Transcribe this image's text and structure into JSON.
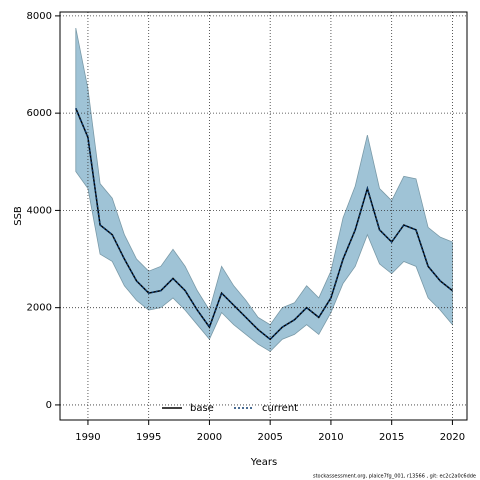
{
  "chart_data": {
    "type": "line",
    "xlabel": "Years",
    "ylabel": "SSB",
    "x": [
      1989,
      1990,
      1991,
      1992,
      1993,
      1994,
      1995,
      1996,
      1997,
      1998,
      1999,
      2000,
      2001,
      2002,
      2003,
      2004,
      2005,
      2006,
      2007,
      2008,
      2009,
      2010,
      2011,
      2012,
      2013,
      2014,
      2015,
      2016,
      2017,
      2018,
      2019,
      2020
    ],
    "series": [
      {
        "name": "base",
        "color": "#000000",
        "values": [
          6100,
          5500,
          3700,
          3500,
          3000,
          2550,
          2300,
          2350,
          2600,
          2350,
          1950,
          1600,
          2300,
          2050,
          1800,
          1550,
          1350,
          1600,
          1750,
          2000,
          1800,
          2200,
          3000,
          3600,
          4450,
          3600,
          3350,
          3700,
          3600,
          2850,
          2550,
          2350
        ]
      },
      {
        "name": "current",
        "color": "#0b3a6e",
        "values": [
          6100,
          5500,
          3700,
          3500,
          3000,
          2550,
          2300,
          2350,
          2600,
          2350,
          1950,
          1600,
          2300,
          2050,
          1800,
          1550,
          1350,
          1600,
          1750,
          2000,
          1800,
          2200,
          3000,
          3600,
          4450,
          3600,
          3350,
          3700,
          3600,
          2850,
          2550,
          2350
        ]
      }
    ],
    "band": {
      "color": "#9fc3d6",
      "upper": [
        7750,
        6500,
        4550,
        4250,
        3500,
        3000,
        2750,
        2850,
        3200,
        2850,
        2350,
        1950,
        2850,
        2450,
        2150,
        1800,
        1650,
        2000,
        2100,
        2450,
        2200,
        2750,
        3850,
        4500,
        5550,
        4450,
        4200,
        4700,
        4650,
        3650,
        3450,
        3350
      ],
      "lower": [
        4800,
        4450,
        3100,
        2950,
        2450,
        2150,
        1950,
        2000,
        2200,
        1950,
        1650,
        1350,
        1900,
        1650,
        1450,
        1250,
        1100,
        1350,
        1450,
        1650,
        1450,
        1900,
        2500,
        2850,
        3500,
        2900,
        2700,
        2950,
        2850,
        2200,
        1950,
        1650
      ]
    },
    "xlim": [
      1987.7,
      2021.2
    ],
    "xticks": [
      1990,
      1995,
      2000,
      2005,
      2010,
      2015,
      2020
    ],
    "ylim": [
      -310,
      8080
    ],
    "yticks": [
      0,
      2000,
      4000,
      6000,
      8000
    ],
    "grid": true,
    "legend": "bottom",
    "footnote": "stockassessment.org, plaice7fg_001, r13566 , git: ec2c2a0c6dde"
  }
}
